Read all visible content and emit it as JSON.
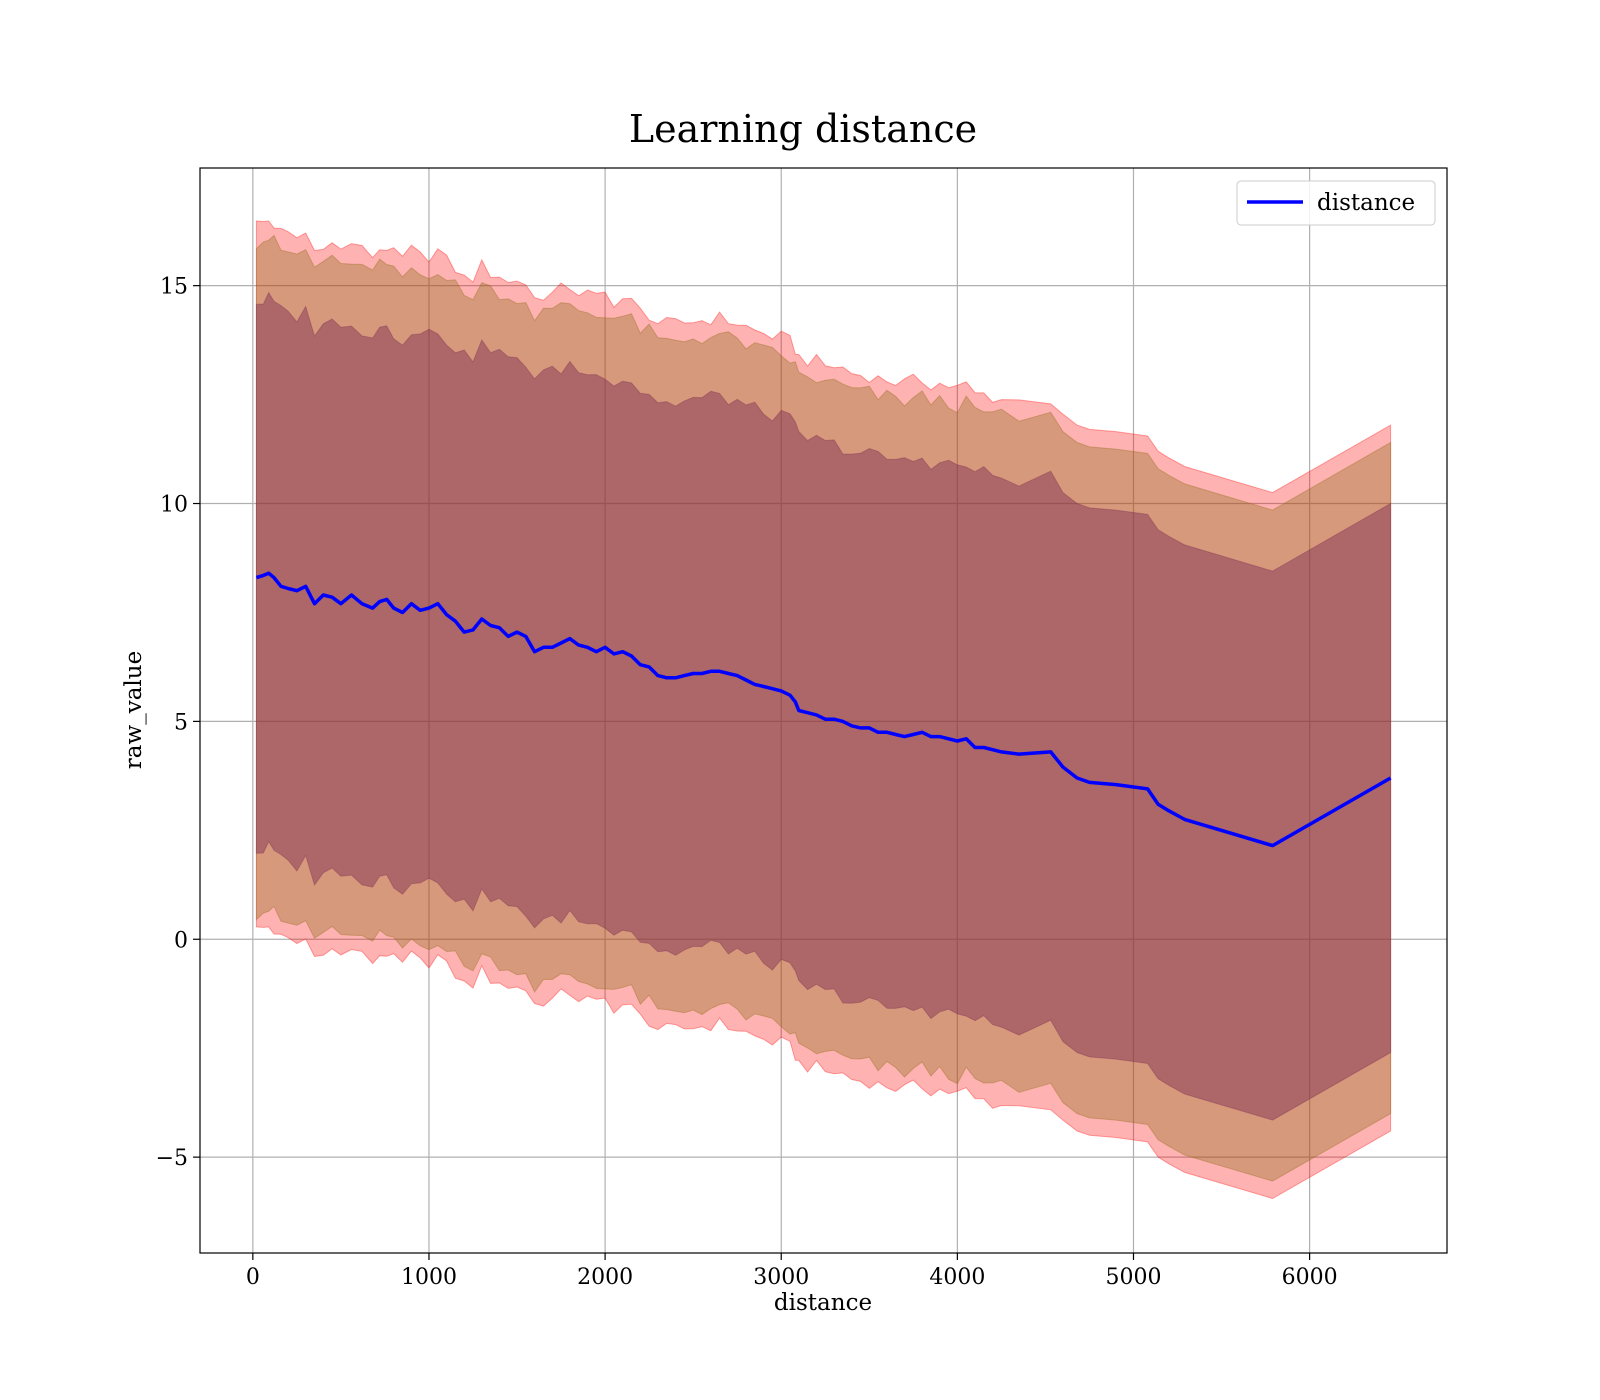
{
  "chart_data": {
    "type": "line",
    "title": "Learning distance",
    "xlabel": "distance",
    "ylabel": "raw_value",
    "xlim": [
      -300,
      6780
    ],
    "ylim": [
      -7.2,
      17.7
    ],
    "xticks": [
      0,
      1000,
      2000,
      3000,
      4000,
      5000,
      6000
    ],
    "xtick_labels": [
      "0",
      "1000",
      "2000",
      "3000",
      "4000",
      "5000",
      "6000"
    ],
    "yticks": [
      -5,
      0,
      5,
      10,
      15
    ],
    "ytick_labels": [
      "−5",
      "0",
      "5",
      "10",
      "15"
    ],
    "grid": true,
    "legend": {
      "position": "upper right",
      "entries": [
        "distance"
      ]
    },
    "colors": {
      "line": "#0000ff",
      "band_outer": "#ff0000",
      "band_middle": "#8b6a14",
      "band_inner": "#7b2a52",
      "grid": "#b0b0b0"
    },
    "series": [
      {
        "name": "distance",
        "x": [
          20,
          60,
          90,
          120,
          160,
          200,
          250,
          300,
          350,
          400,
          450,
          500,
          560,
          620,
          680,
          720,
          760,
          800,
          850,
          900,
          950,
          1000,
          1050,
          1100,
          1150,
          1200,
          1250,
          1300,
          1350,
          1400,
          1450,
          1500,
          1550,
          1600,
          1650,
          1700,
          1750,
          1800,
          1850,
          1900,
          1950,
          2000,
          2050,
          2100,
          2150,
          2200,
          2250,
          2300,
          2350,
          2400,
          2450,
          2500,
          2550,
          2600,
          2650,
          2700,
          2750,
          2800,
          2850,
          2900,
          2950,
          3000,
          3050,
          3080,
          3100,
          3150,
          3200,
          3250,
          3300,
          3350,
          3400,
          3450,
          3500,
          3550,
          3600,
          3650,
          3700,
          3750,
          3800,
          3850,
          3900,
          3950,
          4000,
          4050,
          4100,
          4150,
          4200,
          4250,
          4350,
          4530,
          4600,
          4680,
          4750,
          4900,
          5080,
          5140,
          5200,
          5290,
          5790,
          6460
        ],
        "y": [
          8.3,
          8.35,
          8.4,
          8.3,
          8.1,
          8.05,
          8.0,
          8.1,
          7.7,
          7.9,
          7.85,
          7.7,
          7.9,
          7.7,
          7.6,
          7.75,
          7.8,
          7.6,
          7.5,
          7.7,
          7.55,
          7.6,
          7.7,
          7.45,
          7.3,
          7.05,
          7.1,
          7.35,
          7.2,
          7.15,
          6.95,
          7.05,
          6.95,
          6.6,
          6.7,
          6.7,
          6.8,
          6.9,
          6.75,
          6.7,
          6.6,
          6.7,
          6.55,
          6.6,
          6.5,
          6.3,
          6.25,
          6.05,
          6.0,
          6.0,
          6.05,
          6.1,
          6.1,
          6.15,
          6.15,
          6.1,
          6.05,
          5.95,
          5.85,
          5.8,
          5.75,
          5.7,
          5.6,
          5.45,
          5.25,
          5.2,
          5.15,
          5.05,
          5.05,
          5.0,
          4.9,
          4.85,
          4.85,
          4.75,
          4.75,
          4.7,
          4.65,
          4.7,
          4.75,
          4.65,
          4.65,
          4.6,
          4.55,
          4.6,
          4.4,
          4.4,
          4.35,
          4.3,
          4.25,
          4.3,
          3.95,
          3.7,
          3.6,
          3.55,
          3.45,
          3.1,
          2.95,
          2.75,
          2.15,
          3.7
        ]
      }
    ],
    "bands": [
      {
        "level": "outer",
        "halfwidth": 8.1
      },
      {
        "level": "middle",
        "halfwidth": 7.7
      },
      {
        "level": "inner",
        "halfwidth": 6.3
      }
    ]
  }
}
